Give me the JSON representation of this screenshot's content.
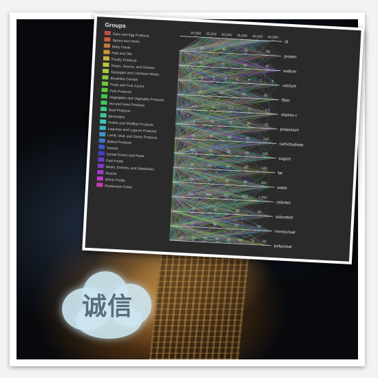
{
  "cloud_text": "诚信",
  "legend": {
    "title": "Groups",
    "items": [
      {
        "label": "Dairy and Egg Products",
        "color": "#c0504d"
      },
      {
        "label": "Spices and Herbs",
        "color": "#c8603c"
      },
      {
        "label": "Baby Foods",
        "color": "#c87a3c"
      },
      {
        "label": "Fats and Oils",
        "color": "#c89a3c"
      },
      {
        "label": "Poultry Products",
        "color": "#c8b43c"
      },
      {
        "label": "Soups, Sauces, and Gravies",
        "color": "#bcc83c"
      },
      {
        "label": "Sausages and Luncheon Meats",
        "color": "#a6c83c"
      },
      {
        "label": "Breakfast Cereals",
        "color": "#8cc83c"
      },
      {
        "label": "Fruits and Fruit Juices",
        "color": "#72c83c"
      },
      {
        "label": "Pork Products",
        "color": "#5ac83c"
      },
      {
        "label": "Vegetables and Vegetable Products",
        "color": "#3cc84a"
      },
      {
        "label": "Nut and Seed Products",
        "color": "#3cc864"
      },
      {
        "label": "Beef Products",
        "color": "#3cc880"
      },
      {
        "label": "Beverages",
        "color": "#3cc89c"
      },
      {
        "label": "Finfish and Shellfish Products",
        "color": "#3cc8b8"
      },
      {
        "label": "Legumes and Legume Products",
        "color": "#3cb4c8"
      },
      {
        "label": "Lamb, Veal, and Game Products",
        "color": "#3c96c8"
      },
      {
        "label": "Baked Products",
        "color": "#3c78c8"
      },
      {
        "label": "Sweets",
        "color": "#3c5ac8"
      },
      {
        "label": "Cereal Grains and Pasta",
        "color": "#4a3cc8"
      },
      {
        "label": "Fast Foods",
        "color": "#663cc8"
      },
      {
        "label": "Meals, Entrees, and Sidedishes",
        "color": "#823cc8"
      },
      {
        "label": "Snacks",
        "color": "#9e3cc8"
      },
      {
        "label": "Ethnic Foods",
        "color": "#ba3cc8"
      },
      {
        "label": "Restaurant Foods",
        "color": "#c83cb0"
      }
    ]
  },
  "chart_data": {
    "type": "parallel-coordinates",
    "axes": [
      {
        "name": "id",
        "ticks": [
          "20,000",
          "25,000",
          "30,000",
          "35,000",
          "40,000",
          "45,000"
        ]
      },
      {
        "name": "protein",
        "ticks": [
          "20",
          "40",
          "60",
          "80"
        ]
      },
      {
        "name": "sodium",
        "ticks": [
          "10",
          "20",
          "30",
          "40"
        ]
      },
      {
        "name": "calcium",
        "ticks": [
          "1",
          "2",
          "3",
          "4",
          "5",
          "6",
          "7",
          "8"
        ]
      },
      {
        "name": "fiber",
        "ticks": [
          "20",
          "40",
          "60",
          "80"
        ]
      },
      {
        "name": "vitamin c",
        "ticks": [
          "0.5",
          "1",
          "1.5",
          "2",
          "2.5"
        ]
      },
      {
        "name": "potassium",
        "ticks": [
          "5",
          "10",
          "15",
          "20",
          "25"
        ]
      },
      {
        "name": "carbohydrate",
        "ticks": [
          "20",
          "40",
          "60",
          "80",
          "100"
        ]
      },
      {
        "name": "sugars",
        "ticks": [
          "20",
          "40",
          "60",
          "80",
          "100"
        ]
      },
      {
        "name": "fat",
        "ticks": [
          "20",
          "40",
          "60",
          "80",
          "100"
        ]
      },
      {
        "name": "water",
        "ticks": [
          "20",
          "40",
          "60",
          "80",
          "100"
        ]
      },
      {
        "name": "calories",
        "ticks": [
          "200",
          "400",
          "600",
          "800",
          "1,000"
        ]
      },
      {
        "name": "saturated",
        "ticks": [
          "20",
          "40",
          "60",
          "80"
        ]
      },
      {
        "name": "monounsat",
        "ticks": [
          "20",
          "40",
          "60",
          "80"
        ]
      },
      {
        "name": "polyunsat",
        "ticks": [
          "10",
          "20",
          "30",
          "40",
          "50",
          "60",
          "70",
          "80"
        ]
      }
    ]
  }
}
